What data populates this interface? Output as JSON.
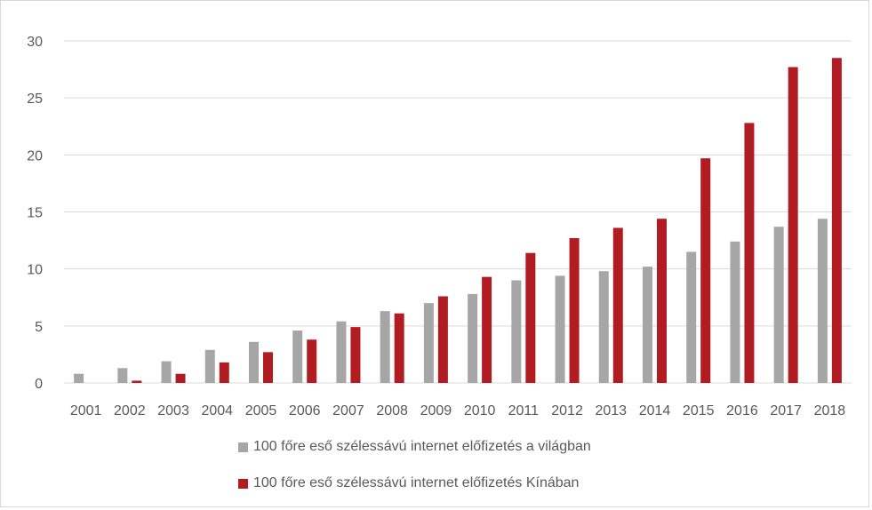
{
  "chart_data": {
    "type": "bar",
    "title": "",
    "xlabel": "",
    "ylabel": "",
    "ylim": [
      0,
      30
    ],
    "yticks": [
      0,
      5,
      10,
      15,
      20,
      25,
      30
    ],
    "grid": true,
    "legend_position": "bottom",
    "categories": [
      "2001",
      "2002",
      "2003",
      "2004",
      "2005",
      "2006",
      "2007",
      "2008",
      "2009",
      "2010",
      "2011",
      "2012",
      "2013",
      "2014",
      "2015",
      "2016",
      "2017",
      "2018"
    ],
    "series": [
      {
        "name": "100 főre eső szélessávú internet előfizetés a világban",
        "color": "#a6a6a6",
        "values": [
          0.8,
          1.3,
          1.9,
          2.9,
          3.6,
          4.6,
          5.4,
          6.3,
          7.0,
          7.8,
          9.0,
          9.4,
          9.8,
          10.2,
          11.5,
          12.4,
          13.7,
          14.4
        ]
      },
      {
        "name": "100 főre eső szélessávú internet előfizetés Kínában",
        "color": "#b01c22",
        "values": [
          0.0,
          0.2,
          0.8,
          1.8,
          2.7,
          3.8,
          4.9,
          6.1,
          7.6,
          9.3,
          11.4,
          12.7,
          13.6,
          14.4,
          19.7,
          22.8,
          27.7,
          28.5
        ]
      }
    ]
  }
}
